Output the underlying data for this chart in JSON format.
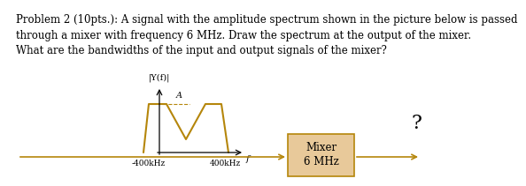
{
  "title_text": "Problem 2 (10pts.): A signal with the amplitude spectrum shown in the picture below is passed\nthrough a mixer with frequency 6 MHz. Draw the spectrum at the output of the mixer.\nWhat are the bandwidths of the input and output signals of the mixer?",
  "spectrum_color": "#b5860b",
  "background_color": "#ffffff",
  "spectrum_label_A": "A",
  "freq_label_left": "-400kHz",
  "freq_label_right": "400kHz",
  "y_axis_label": "|Y(f)|",
  "f_label": "f",
  "mixer_label_line1": "Mixer",
  "mixer_label_line2": "6 MHz",
  "question_mark": "?",
  "mixer_box_facecolor": "#e8c99a",
  "mixer_box_edgecolor": "#b5860b",
  "arrow_color": "#b5860b",
  "text_color": "#000000",
  "title_fontsize": 8.5,
  "label_fontsize": 7.5,
  "mixer_fontsize": 8.5
}
